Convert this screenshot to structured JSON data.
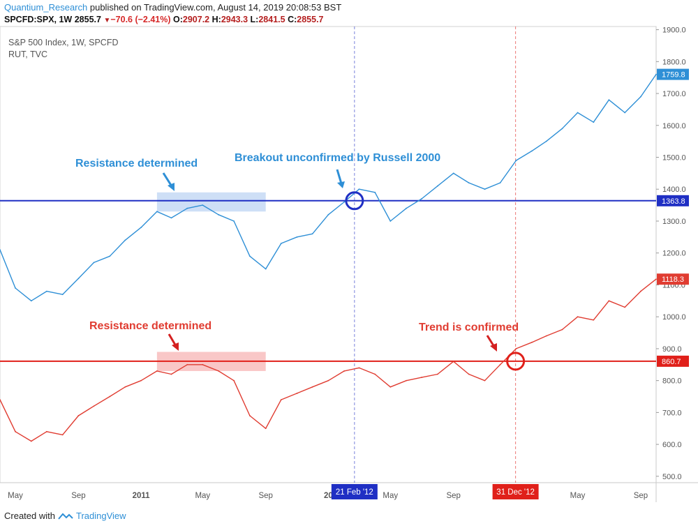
{
  "header": {
    "author": "Quantium_Research",
    "published": "published on TradingView.com, August 14, 2019 20:08:53 BST"
  },
  "quote": {
    "symbol": "SPCFD:SPX, 1W",
    "last": "2855.7",
    "change": "−70.6 (−2.41%)",
    "open_label": "O:",
    "open": "2907.2",
    "high_label": "H:",
    "high": "2943.3",
    "low_label": "L:",
    "low": "2841.5",
    "close_label": "C:",
    "close": "2855.7"
  },
  "legend": {
    "line1": "S&P 500 Index, 1W, SPCFD",
    "line2": "RUT, TVC"
  },
  "footer": {
    "created_with": "Created with",
    "brand": "TradingView"
  },
  "colors": {
    "spx": "#2e8fd6",
    "rut": "#e03c31",
    "blue_level": "#1f2fc4",
    "red_level": "#e0201a",
    "blue_zone": "#c6d9f5",
    "red_zone": "#f8bdbd",
    "axis_text": "#555555"
  },
  "chart_data": {
    "type": "line",
    "ylim": [
      480,
      1910
    ],
    "y_ticks": [
      "500.0",
      "600.0",
      "700.0",
      "800.0",
      "900.0",
      "1000.0",
      "1100.0",
      "1200.0",
      "1300.0",
      "1400.0",
      "1500.0",
      "1600.0",
      "1700.0",
      "1800.0",
      "1900.0"
    ],
    "x_ticks": [
      "May",
      "Sep",
      "2011",
      "May",
      "Sep",
      "20",
      "May",
      "Sep",
      "May",
      "Sep"
    ],
    "x_tick_bold": [
      false,
      false,
      true,
      false,
      false,
      true,
      false,
      false,
      false,
      false
    ],
    "x_range": [
      "2010-04",
      "2013-10"
    ],
    "x_tick_dates": [
      "2010-05",
      "2010-09",
      "2011-01",
      "2011-05",
      "2011-09",
      "2012-01",
      "2012-05",
      "2012-09",
      "2013-05",
      "2013-09"
    ],
    "series": [
      {
        "x": [
          "2010-04",
          "2010-05",
          "2010-06",
          "2010-07",
          "2010-08",
          "2010-09",
          "2010-10",
          "2010-11",
          "2010-12",
          "2011-01",
          "2011-02",
          "2011-03",
          "2011-04",
          "2011-05",
          "2011-06",
          "2011-07",
          "2011-08",
          "2011-09",
          "2011-10",
          "2011-11",
          "2011-12",
          "2012-01",
          "2012-02",
          "2012-03",
          "2012-04",
          "2012-05",
          "2012-06",
          "2012-07",
          "2012-08",
          "2012-09",
          "2012-10",
          "2012-11",
          "2012-12",
          "2013-01",
          "2013-02",
          "2013-03",
          "2013-04",
          "2013-05",
          "2013-06",
          "2013-07",
          "2013-08",
          "2013-09",
          "2013-10"
        ],
        "values": [
          1210,
          1090,
          1050,
          1080,
          1070,
          1120,
          1170,
          1190,
          1240,
          1280,
          1330,
          1310,
          1340,
          1350,
          1320,
          1300,
          1190,
          1150,
          1230,
          1250,
          1260,
          1320,
          1360,
          1400,
          1390,
          1300,
          1340,
          1370,
          1410,
          1450,
          1420,
          1400,
          1420,
          1490,
          1520,
          1550,
          1590,
          1640,
          1610,
          1680,
          1640,
          1690,
          1760
        ]
      },
      {
        "x": [
          "2010-04",
          "2010-05",
          "2010-06",
          "2010-07",
          "2010-08",
          "2010-09",
          "2010-10",
          "2010-11",
          "2010-12",
          "2011-01",
          "2011-02",
          "2011-03",
          "2011-04",
          "2011-05",
          "2011-06",
          "2011-07",
          "2011-08",
          "2011-09",
          "2011-10",
          "2011-11",
          "2011-12",
          "2012-01",
          "2012-02",
          "2012-03",
          "2012-04",
          "2012-05",
          "2012-06",
          "2012-07",
          "2012-08",
          "2012-09",
          "2012-10",
          "2012-11",
          "2012-12",
          "2013-01",
          "2013-02",
          "2013-03",
          "2013-04",
          "2013-05",
          "2013-06",
          "2013-07",
          "2013-08",
          "2013-09",
          "2013-10"
        ],
        "values": [
          740,
          640,
          610,
          640,
          630,
          690,
          720,
          750,
          780,
          800,
          830,
          820,
          850,
          850,
          830,
          800,
          690,
          650,
          740,
          760,
          780,
          800,
          830,
          840,
          820,
          780,
          800,
          810,
          820,
          860,
          820,
          800,
          850,
          900,
          920,
          940,
          960,
          1000,
          990,
          1050,
          1030,
          1080,
          1118
        ]
      }
    ],
    "level_labels": [
      "1363.8",
      "860.7"
    ],
    "last_labels": [
      "1759.8",
      "1118.3"
    ],
    "levels": [
      1363.8,
      860.7
    ],
    "date_markers": [
      {
        "date": "2012-02-21",
        "label": "21 Feb '12"
      },
      {
        "date": "2012-12-31",
        "label": "31 Dec '12"
      }
    ],
    "annotations": {
      "resistance_blue": "Resistance determined",
      "breakout": "Breakout unconfirmed by Russell 2000",
      "resistance_red": "Resistance determined",
      "trend": "Trend is confirmed"
    },
    "zones": [
      {
        "series": 0,
        "from": "2011-02",
        "to": "2011-09",
        "low": 1330,
        "high": 1390
      },
      {
        "series": 1,
        "from": "2011-02",
        "to": "2011-09",
        "low": 830,
        "high": 890
      }
    ],
    "circles": [
      {
        "series": 0,
        "date": "2012-02-21",
        "value": 1363.8
      },
      {
        "series": 1,
        "date": "2012-12-31",
        "value": 860.7
      }
    ]
  }
}
